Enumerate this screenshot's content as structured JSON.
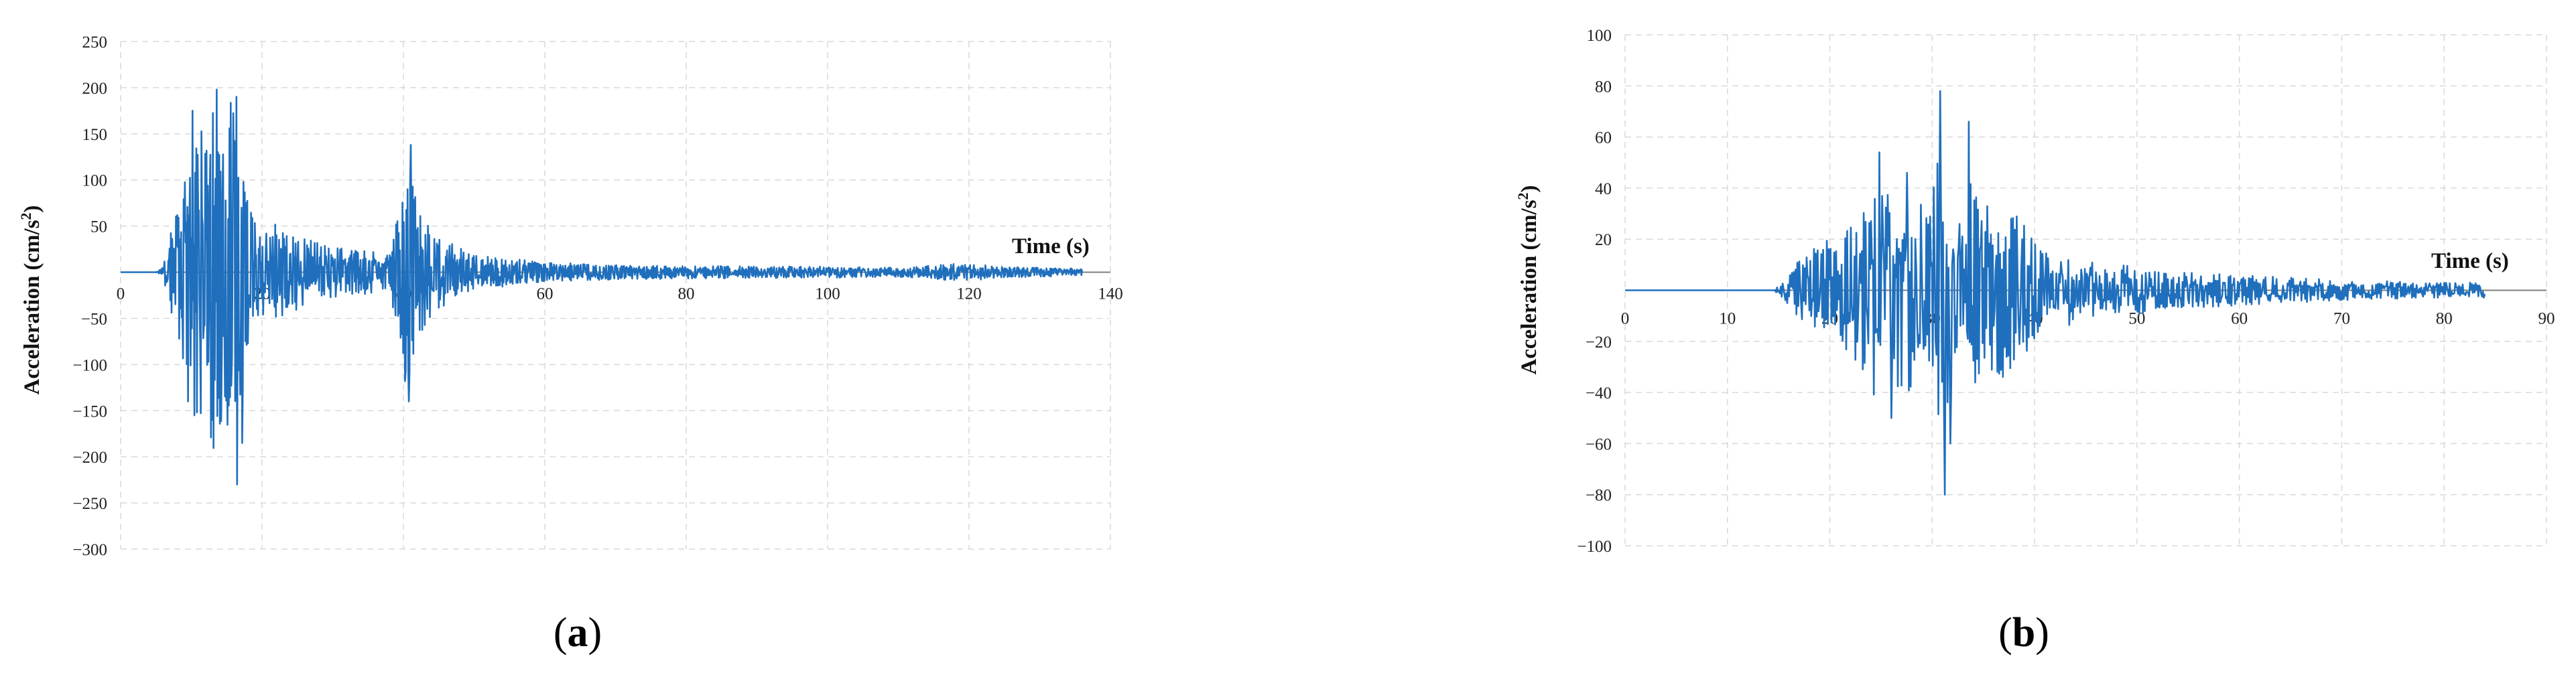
{
  "chart_data": [
    {
      "type": "line",
      "panel": "a",
      "xlabel": "Time (s)",
      "ylabel_main": "Acceleration (cm/s",
      "ylabel_sup": "2",
      "ylabel_end": ")",
      "xlim": [
        0,
        140
      ],
      "ylim": [
        -300,
        250
      ],
      "xticks": [
        "0",
        "20",
        "40",
        "60",
        "80",
        "100",
        "120",
        "140"
      ],
      "yticks": [
        "250",
        "200",
        "150",
        "100",
        "50",
        "-50",
        "-100",
        "-150",
        "-200",
        "-250",
        "-300"
      ],
      "grid": true,
      "color": "#1f6fbd",
      "duration": 136,
      "envelope": [
        [
          0,
          0
        ],
        [
          5,
          0
        ],
        [
          6,
          5
        ],
        [
          7,
          40
        ],
        [
          8,
          65
        ],
        [
          9,
          110
        ],
        [
          10,
          175
        ],
        [
          11,
          160
        ],
        [
          12,
          150
        ],
        [
          13,
          195
        ],
        [
          14,
          175
        ],
        [
          15,
          185
        ],
        [
          16,
          195
        ],
        [
          17,
          150
        ],
        [
          18,
          80
        ],
        [
          19,
          55
        ],
        [
          20,
          45
        ],
        [
          22,
          55
        ],
        [
          25,
          40
        ],
        [
          28,
          32
        ],
        [
          32,
          26
        ],
        [
          36,
          22
        ],
        [
          38,
          20
        ],
        [
          39,
          60
        ],
        [
          40,
          130
        ],
        [
          41,
          110
        ],
        [
          42,
          75
        ],
        [
          44,
          45
        ],
        [
          47,
          30
        ],
        [
          50,
          18
        ],
        [
          55,
          15
        ],
        [
          60,
          11
        ],
        [
          70,
          8
        ],
        [
          80,
          7
        ],
        [
          100,
          6
        ],
        [
          110,
          5
        ],
        [
          118,
          9
        ],
        [
          120,
          10
        ],
        [
          124,
          6
        ],
        [
          130,
          5
        ],
        [
          136,
          4
        ]
      ],
      "peaks": [
        [
          16.5,
          -230
        ],
        [
          17.2,
          -185
        ],
        [
          13.0,
          -160
        ],
        [
          9.5,
          -140
        ],
        [
          40.8,
          -140
        ],
        [
          40.2,
          -118
        ],
        [
          13.6,
          198
        ],
        [
          16.4,
          190
        ],
        [
          10.2,
          175
        ],
        [
          41.0,
          138
        ]
      ],
      "caption_open": "(",
      "caption_letter": "a",
      "caption_close": ")"
    },
    {
      "type": "line",
      "panel": "b",
      "xlabel": "Time (s)",
      "ylabel_main": "Acceleration (cm/s",
      "ylabel_sup": "2",
      "ylabel_end": ")",
      "xlim": [
        0,
        90
      ],
      "ylim": [
        -100,
        100
      ],
      "xticks": [
        "0",
        "10",
        "20",
        "30",
        "40",
        "50",
        "60",
        "70",
        "80",
        "90"
      ],
      "yticks": [
        "100",
        "80",
        "60",
        "40",
        "20",
        "-20",
        "-40",
        "-60",
        "-80",
        "-100"
      ],
      "grid": true,
      "color": "#1f6fbd",
      "duration": 84,
      "envelope": [
        [
          0,
          0
        ],
        [
          14.5,
          0
        ],
        [
          15.5,
          4
        ],
        [
          17,
          12
        ],
        [
          19,
          18
        ],
        [
          21,
          22
        ],
        [
          23,
          30
        ],
        [
          24,
          40
        ],
        [
          25,
          50
        ],
        [
          26,
          42
        ],
        [
          27,
          38
        ],
        [
          28,
          40
        ],
        [
          29,
          35
        ],
        [
          30,
          42
        ],
        [
          31,
          60
        ],
        [
          32,
          40
        ],
        [
          33,
          55
        ],
        [
          34,
          40
        ],
        [
          36,
          36
        ],
        [
          38,
          32
        ],
        [
          40,
          20
        ],
        [
          42,
          15
        ],
        [
          45,
          12
        ],
        [
          48,
          10
        ],
        [
          51,
          9
        ],
        [
          55,
          7
        ],
        [
          60,
          6
        ],
        [
          65,
          5
        ],
        [
          70,
          4
        ],
        [
          75,
          3.5
        ],
        [
          80,
          3
        ],
        [
          84,
          3
        ]
      ],
      "peaks": [
        [
          30.8,
          78
        ],
        [
          33.6,
          66
        ],
        [
          24.8,
          54
        ],
        [
          31.2,
          -80
        ],
        [
          31.8,
          -60
        ],
        [
          26.0,
          -50
        ],
        [
          27.5,
          46
        ]
      ],
      "caption_open": "(",
      "caption_letter": "b",
      "caption_close": ")"
    }
  ]
}
